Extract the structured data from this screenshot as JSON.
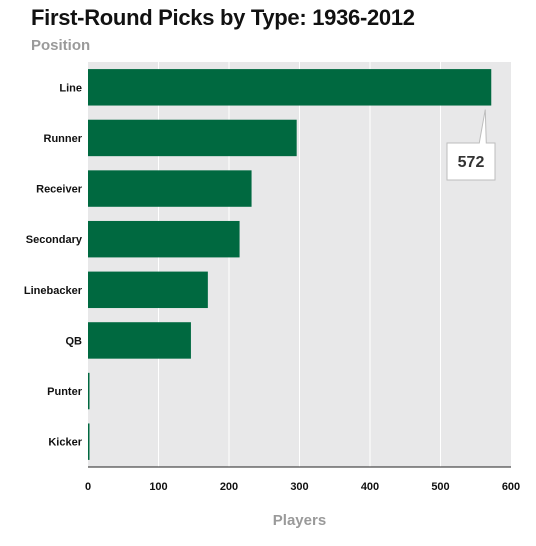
{
  "chart_data": {
    "type": "bar",
    "orientation": "horizontal",
    "title": "First-Round Picks by Type: 1936-2012",
    "ylabel": "Position",
    "xlabel": "Players",
    "categories": [
      "Line",
      "Runner",
      "Receiver",
      "Secondary",
      "Linebacker",
      "QB",
      "Punter",
      "Kicker"
    ],
    "values": [
      572,
      296,
      232,
      215,
      170,
      146,
      2,
      1
    ],
    "xlim": [
      0,
      600
    ],
    "xticks": [
      0,
      100,
      200,
      300,
      400,
      500,
      600
    ],
    "grid": true,
    "bar_color": "#006940",
    "plot_background": "#e8e8e9",
    "annotation": {
      "category": "Line",
      "text": "572"
    }
  }
}
